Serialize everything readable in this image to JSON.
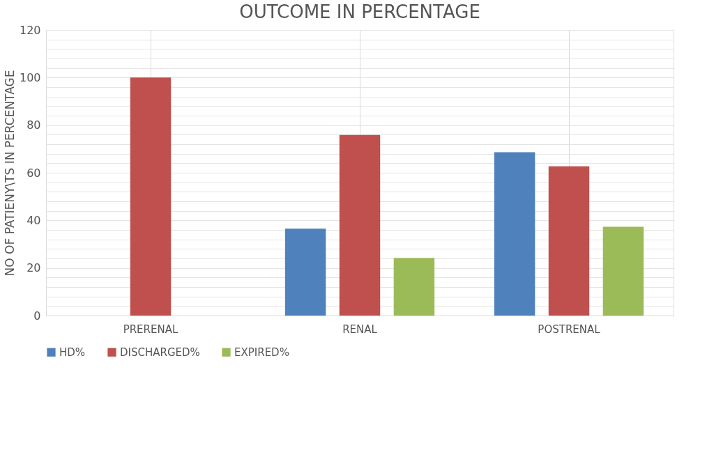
{
  "chart_data": {
    "type": "bar",
    "title": "OUTCOME IN PERCENTAGE",
    "ylabel": "NO OF PATIENY\\TS IN PERCENTAGE",
    "categories": [
      "PRERENAL",
      "RENAL",
      "POSTRENAL"
    ],
    "series": [
      {
        "name": "HD%",
        "color": "#4f81bd",
        "values": [
          0,
          36.5,
          68.6
        ]
      },
      {
        "name": "DISCHARGED%",
        "color": "#c0504d",
        "values": [
          100,
          75.9,
          62.7
        ]
      },
      {
        "name": "EXPIRED%",
        "color": "#9bbb59",
        "values": [
          0,
          24.2,
          37.3
        ]
      }
    ],
    "ylim": [
      0,
      120
    ],
    "yticks": [
      0,
      {
        "value": 4,
        "label": null
      },
      {
        "value": 8,
        "label": null
      },
      {
        "value": 12,
        "label": null
      },
      {
        "value": 16,
        "label": null
      },
      20,
      {
        "value": 24,
        "label": null
      },
      {
        "value": 28,
        "label": null
      },
      {
        "value": 32,
        "label": null
      },
      {
        "value": 36,
        "label": null
      },
      40,
      {
        "value": 44,
        "label": null
      },
      {
        "value": 48,
        "label": null
      },
      {
        "value": 52,
        "label": null
      },
      {
        "value": 56,
        "label": null
      },
      60,
      {
        "value": 64,
        "label": null
      },
      {
        "value": 68,
        "label": null
      },
      {
        "value": 72,
        "label": null
      },
      {
        "value": 76,
        "label": null
      },
      80,
      {
        "value": 84,
        "label": null
      },
      {
        "value": 88,
        "label": null
      },
      {
        "value": 92,
        "label": null
      },
      {
        "value": 96,
        "label": null
      },
      100,
      {
        "value": 104,
        "label": null
      },
      {
        "value": 108,
        "label": null
      },
      {
        "value": 112,
        "label": null
      },
      {
        "value": 116,
        "label": null
      },
      120
    ],
    "grid": true,
    "legend": "bottom"
  }
}
